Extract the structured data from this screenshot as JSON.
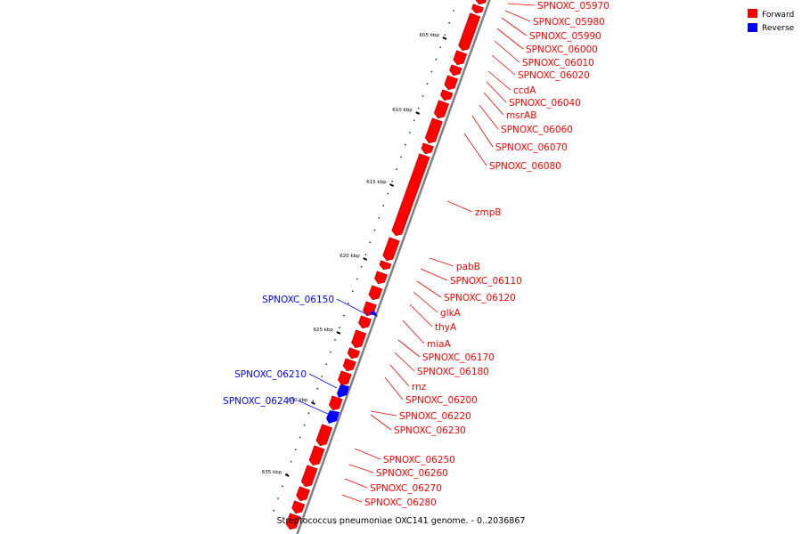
{
  "caption": "Streptococcus pneumoniae OXC141 genome. - 0..2036867",
  "legend": [
    {
      "label": "Forward",
      "color": "#ff0000"
    },
    {
      "label": "Reverse",
      "color": "#0000ff"
    }
  ],
  "ticks": [
    "605 kbp",
    "610 kbp",
    "615 kbp",
    "620 kbp",
    "625 kbp",
    "630 kbp",
    "635 kbp"
  ],
  "forward_labels": [
    "SPNOXC_05970",
    "SPNOXC_05980",
    "SPNOXC_05990",
    "SPNOXC_06000",
    "SPNOXC_06010",
    "SPNOXC_06020",
    "ccdA",
    "SPNOXC_06040",
    "msrAB",
    "SPNOXC_06060",
    "SPNOXC_06070",
    "SPNOXC_06080",
    "zmpB",
    "pabB",
    "SPNOXC_06110",
    "SPNOXC_06120",
    "glkA",
    "thyA",
    "miaA",
    "SPNOXC_06170",
    "SPNOXC_06180",
    "rnz",
    "SPNOXC_06200",
    "SPNOXC_06220",
    "SPNOXC_06230",
    "SPNOXC_06250",
    "SPNOXC_06260",
    "SPNOXC_06270",
    "SPNOXC_06280"
  ],
  "reverse_labels": [
    "SPNOXC_06150",
    "SPNOXC_06210",
    "SPNOXC_06240"
  ],
  "colors": {
    "forward": "#ff0000",
    "forward_dark": "#b80000",
    "reverse": "#0000ff",
    "backbone": "#808080"
  }
}
